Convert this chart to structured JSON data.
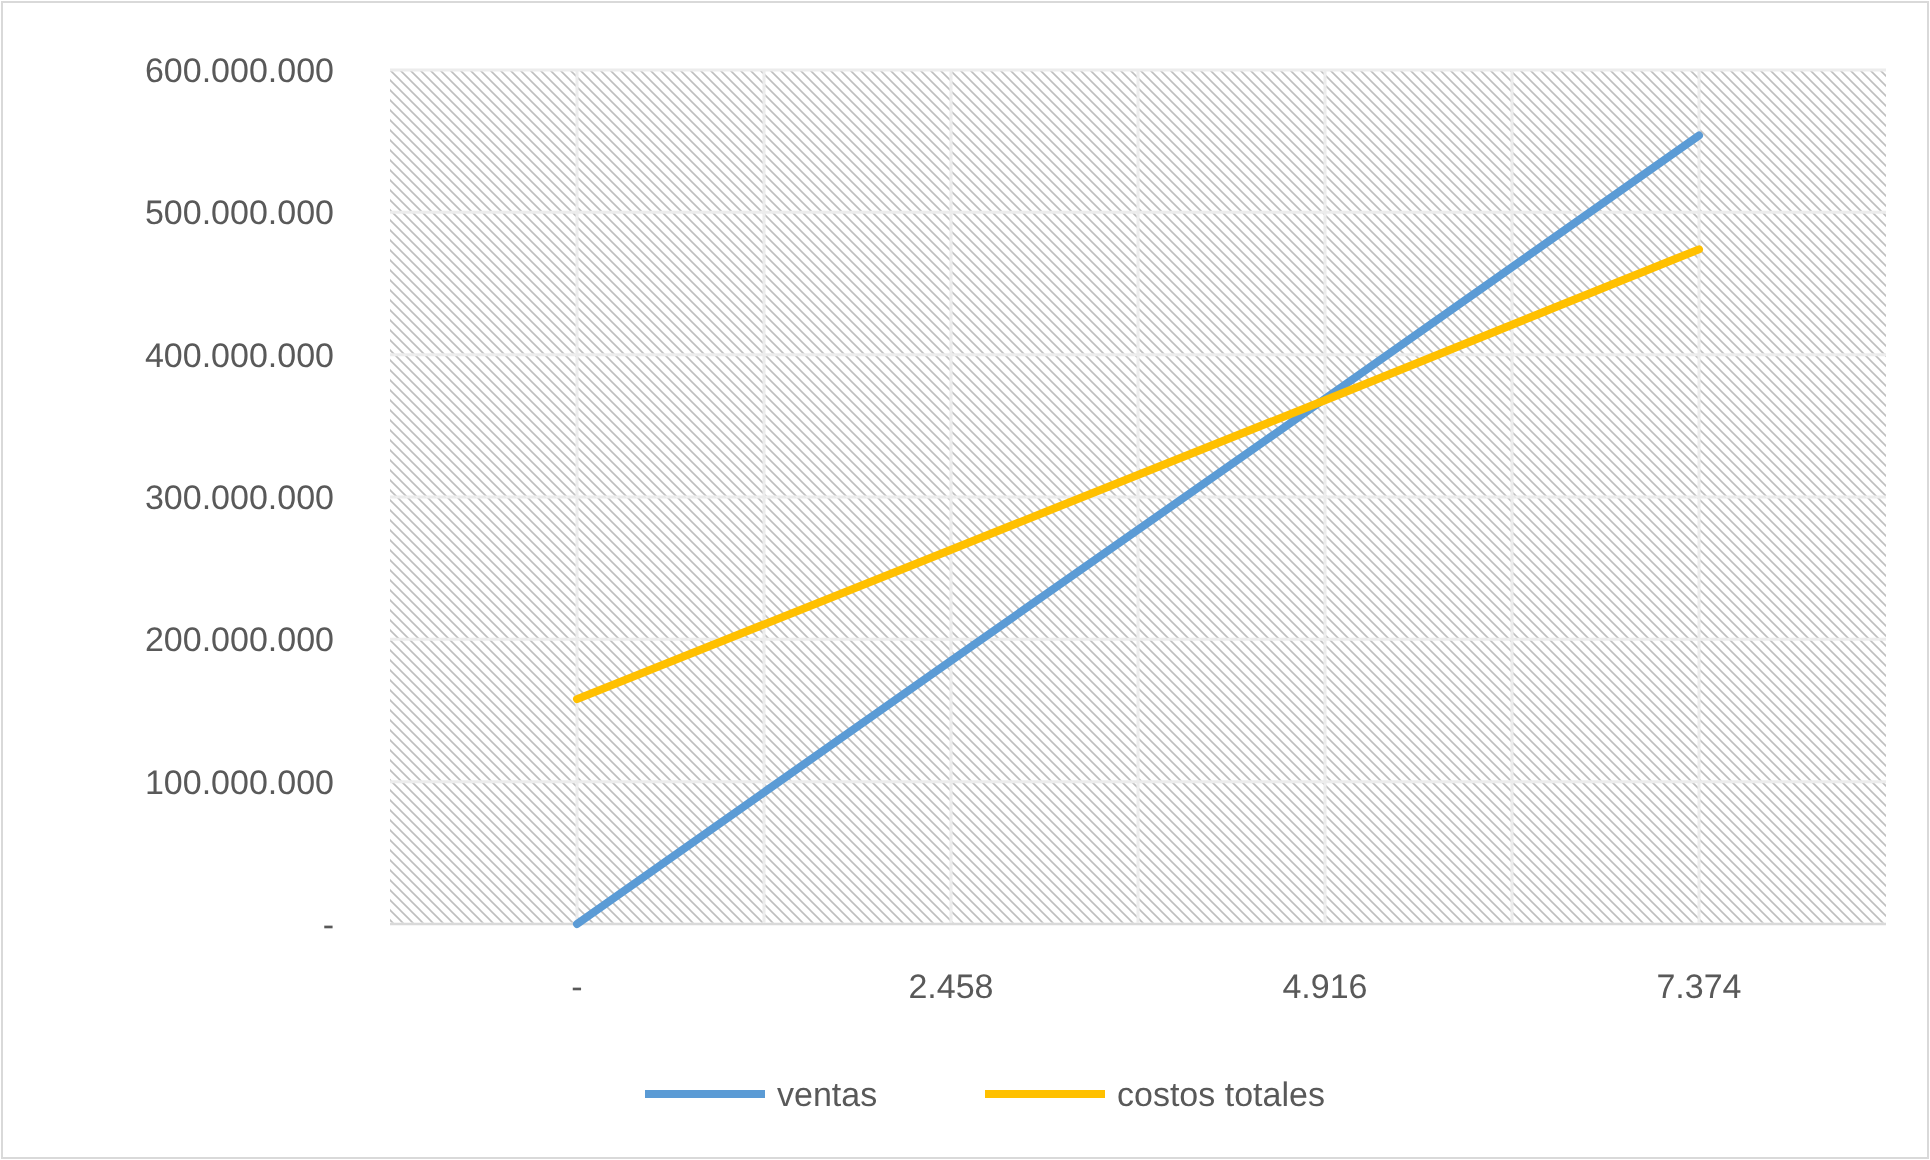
{
  "chart_data": {
    "type": "line",
    "x": [
      0,
      2458,
      4916,
      7374
    ],
    "series": [
      {
        "name": "ventas",
        "color": "#5b9bd5",
        "values": [
          0,
          185000000,
          369000000,
          554000000
        ]
      },
      {
        "name": "costos totales",
        "color": "#ffc000",
        "values": [
          158000000,
          263000000,
          368000000,
          474000000
        ]
      }
    ],
    "xlim": [
      -1229,
      8603
    ],
    "xticks": [
      {
        "value": 0,
        "label": "-"
      },
      {
        "value": 1229,
        "label": null
      },
      {
        "value": 2458,
        "label": "2.458"
      },
      {
        "value": 3687,
        "label": null
      },
      {
        "value": 4916,
        "label": "4.916"
      },
      {
        "value": 6145,
        "label": null
      },
      {
        "value": 7374,
        "label": "7.374"
      }
    ],
    "ylim": [
      0,
      600000000
    ],
    "yticks": [
      {
        "value": 0,
        "label": "-"
      },
      {
        "value": 100000000,
        "label": "100.000.000"
      },
      {
        "value": 200000000,
        "label": "200.000.000"
      },
      {
        "value": 300000000,
        "label": "300.000.000"
      },
      {
        "value": 400000000,
        "label": "400.000.000"
      },
      {
        "value": 500000000,
        "label": "500.000.000"
      },
      {
        "value": 600000000,
        "label": "600.000.000"
      }
    ],
    "grid": true,
    "legend": "bottom",
    "marker": "none",
    "line_style": "solid"
  }
}
